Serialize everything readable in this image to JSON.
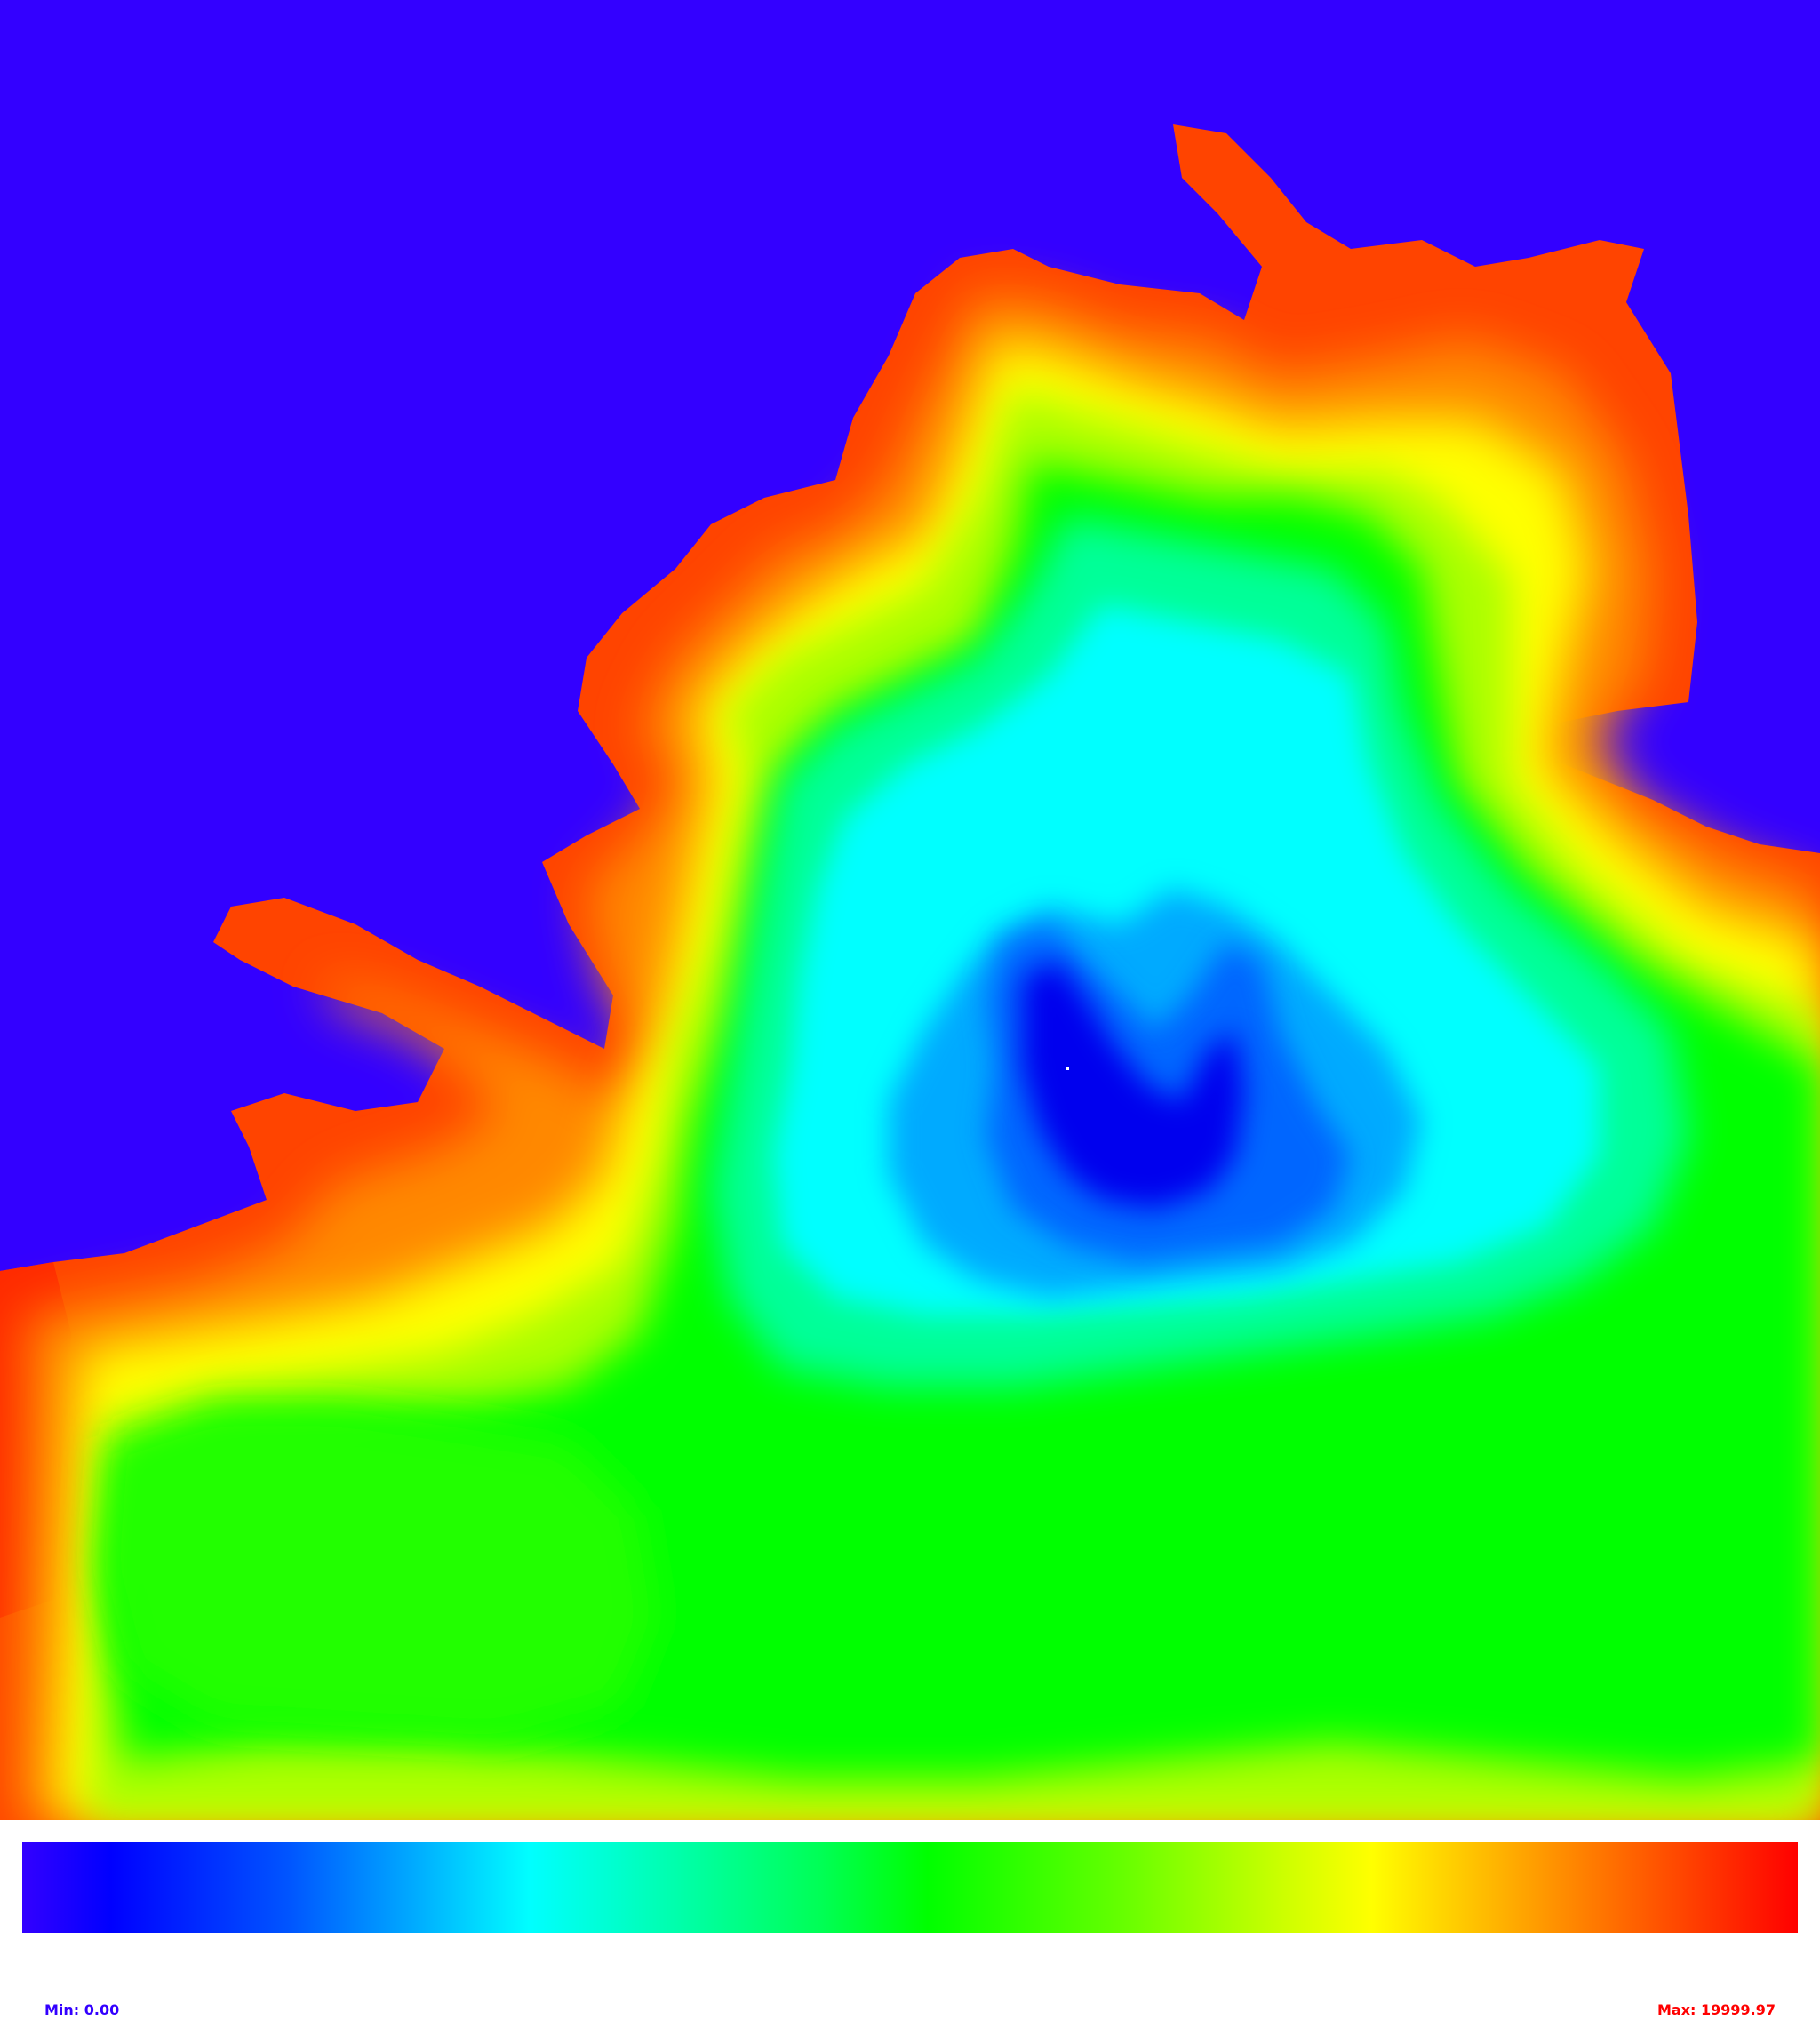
{
  "chart_data": {
    "type": "heatmap",
    "title": "",
    "xlabel": "",
    "ylabel": "",
    "colorscale": [
      "#3300ff",
      "#0000ff",
      "#00aaff",
      "#00ffff",
      "#00ff55",
      "#00ff00",
      "#ccff00",
      "#ffff00",
      "#ffaa00",
      "#ff5500",
      "#ff0000"
    ],
    "value_range": [
      0.0,
      19999.97
    ],
    "grid": false,
    "legend": "colorbar-bottom",
    "min_label": "Min: 0.00",
    "max_label": "Max: 19999.97",
    "background_color": "#3300ff",
    "source_marker_color": "#ffffff"
  }
}
